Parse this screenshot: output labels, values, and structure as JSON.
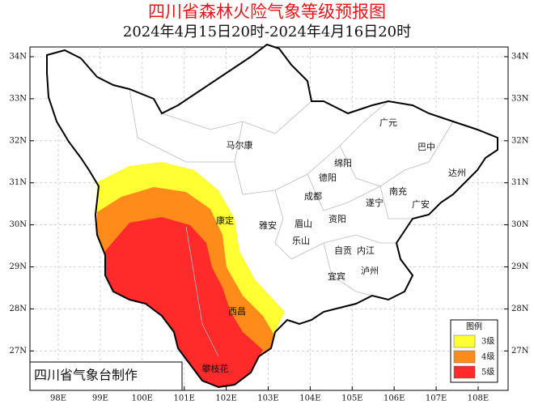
{
  "header": {
    "title": "四川省森林火险气象等级预报图",
    "subtitle": "2024年4月15日20时-2024年4月16日20时"
  },
  "lat_labels": [
    "34N",
    "33N",
    "32N",
    "31N",
    "30N",
    "29N",
    "28N",
    "27N"
  ],
  "lon_labels": [
    "98E",
    "99E",
    "100E",
    "101E",
    "102E",
    "103E",
    "104E",
    "105E",
    "106E",
    "107E",
    "108E"
  ],
  "cities": [
    "马尔康",
    "广元",
    "巴中",
    "达州",
    "绵阳",
    "德阳",
    "成都",
    "南充",
    "遂宁",
    "广安",
    "雅安",
    "眉山",
    "资阳",
    "康定",
    "乐山",
    "自贡",
    "内江",
    "泸州",
    "宜宾",
    "西昌",
    "攀枝花"
  ],
  "legend": {
    "title": "图例",
    "items": [
      "3级",
      "4级",
      "5级"
    ]
  },
  "footer": "四川省气象台制作"
}
